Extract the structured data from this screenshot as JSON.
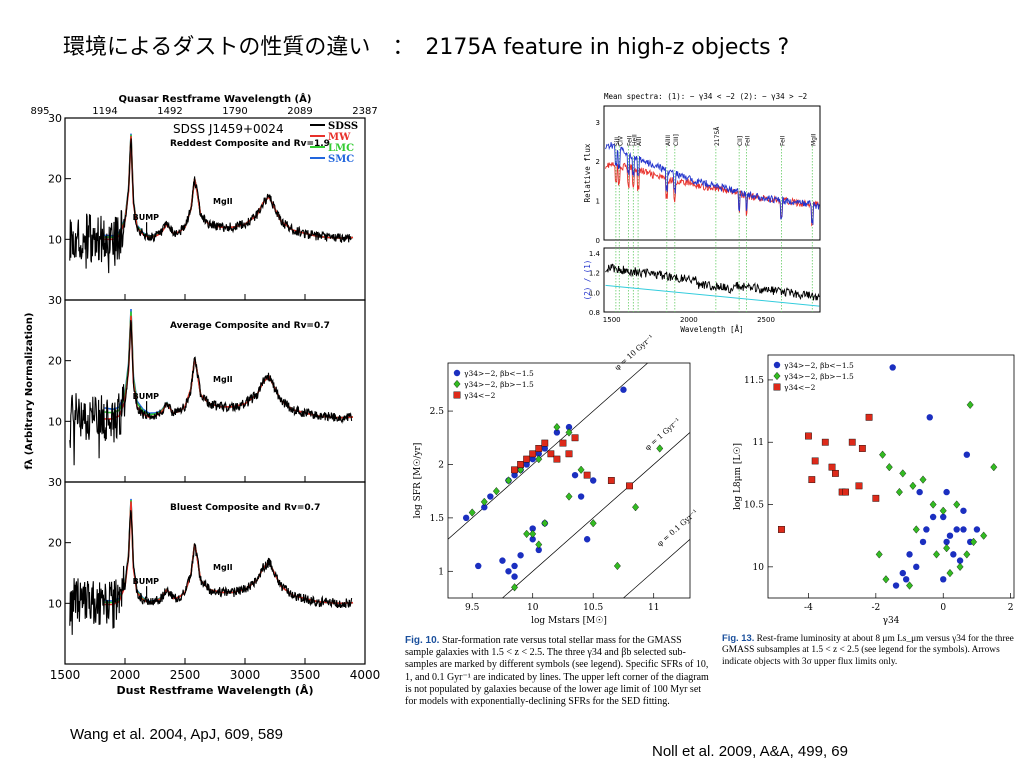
{
  "slide": {
    "title": "環境によるダストの性質の違い　：　2175A feature in high-z objects ?",
    "citation_left": "Wang et al. 2004, ApJ, 609, 589",
    "citation_right": "Noll et al. 2009, A&A, 499, 69"
  },
  "chart_data": [
    {
      "id": "wang-spectra",
      "type": "line",
      "title": "Quasar Restframe Wavelength (Å)",
      "xlabel": "Dust Restframe Wavelength (Å)",
      "ylabel": "fλ (Arbitrary Normalization)",
      "top_axis_ticks": [
        "895",
        "1194",
        "1492",
        "1790",
        "2089",
        "2387"
      ],
      "xlim": [
        1500,
        4000
      ],
      "x_ticks": [
        1500,
        2000,
        2500,
        3000,
        3500,
        4000
      ],
      "ylim": [
        0,
        30
      ],
      "y_ticks": [
        10,
        20,
        30
      ],
      "object_label": "SDSS J1459+0024",
      "legend": [
        "SDSS",
        "MW",
        "LMC",
        "SMC"
      ],
      "legend_colors": {
        "SDSS": "#000000",
        "MW": "#e8302a",
        "LMC": "#33cc33",
        "SMC": "#2266dd"
      },
      "panels": [
        {
          "label": "Reddest Composite and Rv=1.9",
          "bump_label": "BUMP",
          "line_label": "MgII",
          "bump_x": 2180,
          "bump_y": 12.5,
          "mg_x": 2800,
          "mg_y": 15.8
        },
        {
          "label": "Average Composite and Rv=0.7",
          "bump_label": "BUMP",
          "line_label": "MgII",
          "bump_x": 2180,
          "bump_y": 13,
          "mg_x": 2800,
          "mg_y": 16.5
        },
        {
          "label": "Bluest Composite and Rv=0.7",
          "bump_label": "BUMP",
          "line_label": "MgII",
          "bump_x": 2180,
          "bump_y": 12.5,
          "mg_x": 2800,
          "mg_y": 15.5
        }
      ],
      "series": [
        {
          "name": "MW",
          "x": [
            1600,
            1700,
            1800,
            1900,
            1950,
            2000,
            2030,
            2050,
            2070,
            2100,
            2150,
            2200,
            2250,
            2300,
            2350,
            2400,
            2450,
            2500,
            2550,
            2580,
            2600,
            2630,
            2700,
            2800,
            2900,
            3000,
            3100,
            3150,
            3200,
            3250,
            3300,
            3400,
            3500,
            3600,
            3700,
            3800,
            3900
          ],
          "y": [
            10.5,
            10.2,
            10,
            10,
            10.5,
            13,
            18,
            27,
            16,
            12,
            10.8,
            10.3,
            10.5,
            11,
            12.5,
            11,
            11.2,
            12,
            15,
            20,
            18,
            14,
            12.5,
            12,
            12,
            12.5,
            14,
            16,
            17,
            15,
            13,
            11.5,
            11,
            10.5,
            10.3,
            10.2,
            10.3
          ]
        }
      ]
    },
    {
      "id": "mean-spectra",
      "type": "line",
      "title": "Mean spectra: (1): − γ34 < −2   (2): − γ34 > −2",
      "xlabel": "Wavelength [Å]",
      "ylabel": "Relative flux",
      "ylabel_lower": "(2) / (1)",
      "xlim": [
        1450,
        2850
      ],
      "x_ticks": [
        1500,
        2000,
        2500
      ],
      "ylim": [
        0,
        3.4
      ],
      "y_ticks": [
        0,
        1,
        2,
        3
      ],
      "ylim_lower": [
        0.8,
        1.45
      ],
      "y_ticks_lower": [
        0.8,
        1.0,
        1.2,
        1.4
      ],
      "line_ids": [
        {
          "label": "SiII",
          "x": 1527
        },
        {
          "label": "CIV",
          "x": 1549
        },
        {
          "label": "FeII",
          "x": 1608
        },
        {
          "label": "HeII",
          "x": 1640
        },
        {
          "label": "AlII",
          "x": 1671
        },
        {
          "label": "AlIII",
          "x": 1857
        },
        {
          "label": "CIII]",
          "x": 1909
        },
        {
          "label": "2175Å",
          "x": 2175
        },
        {
          "label": "CII]",
          "x": 2326
        },
        {
          "label": "FeII",
          "x": 2374
        },
        {
          "label": "FeII",
          "x": 2600
        },
        {
          "label": "MgII",
          "x": 2800
        }
      ],
      "series": [
        {
          "name": "(1)",
          "color": "#e8302a",
          "x": [
            1500,
            1600,
            1700,
            1800,
            1900,
            2000,
            2100,
            2200,
            2300,
            2400,
            2500,
            2600,
            2700,
            2800,
            2850
          ],
          "y": [
            1.9,
            1.85,
            1.75,
            1.6,
            1.5,
            1.45,
            1.35,
            1.3,
            1.2,
            1.1,
            1.05,
            1.0,
            0.95,
            0.9,
            0.9
          ]
        },
        {
          "name": "(2)",
          "color": "#2233cc",
          "x": [
            1500,
            1600,
            1700,
            1800,
            1900,
            2000,
            2100,
            2200,
            2300,
            2400,
            2500,
            2600,
            2700,
            2800,
            2850
          ],
          "y": [
            2.4,
            2.2,
            2.0,
            1.85,
            1.7,
            1.55,
            1.45,
            1.35,
            1.25,
            1.15,
            1.05,
            1.0,
            0.95,
            0.9,
            0.85
          ]
        }
      ]
    },
    {
      "id": "sfr-mass",
      "type": "scatter",
      "xlabel": "log Mstars [M☉]",
      "ylabel": "log SFR [M☉/yr]",
      "xlim": [
        9.3,
        11.3
      ],
      "x_ticks": [
        9.5,
        10,
        10.5,
        11
      ],
      "ylim": [
        0.75,
        2.95
      ],
      "y_ticks": [
        1,
        1.5,
        2,
        2.5
      ],
      "legend": [
        "γ34>−2, βb<−1.5",
        "γ34>−2, βb>−1.5",
        "γ34<−2"
      ],
      "ssfr_lines": [
        {
          "label": "φ = 10 Gyr⁻¹",
          "log_ssfr": -8
        },
        {
          "label": "φ = 1 Gyr⁻¹",
          "log_ssfr": -9
        },
        {
          "label": "φ = 0.1 Gyr⁻¹",
          "log_ssfr": -10
        }
      ],
      "series": [
        {
          "name": "γ34>−2, βb<−1.5",
          "marker": "circle",
          "color": "#1b2fc0",
          "x": [
            9.45,
            9.6,
            9.65,
            9.8,
            9.85,
            9.9,
            9.95,
            10.0,
            10.05,
            10.1,
            10.1,
            10.2,
            10.3,
            10.35,
            10.4,
            10.5,
            9.55,
            9.75,
            9.8,
            9.85,
            9.9,
            10.0,
            10.05,
            10.1,
            10.45,
            10.75,
            9.85,
            10.0
          ],
          "y": [
            1.5,
            1.6,
            1.7,
            1.85,
            1.9,
            1.95,
            2.0,
            2.05,
            2.1,
            2.15,
            2.2,
            2.3,
            2.35,
            1.9,
            1.7,
            1.85,
            1.05,
            1.1,
            1.0,
            1.05,
            1.15,
            1.3,
            1.2,
            1.45,
            1.3,
            2.7,
            0.95,
            1.4
          ]
        },
        {
          "name": "γ34>−2, βb>−1.5",
          "marker": "diamond",
          "color": "#33bb22",
          "x": [
            9.5,
            9.6,
            9.7,
            9.8,
            9.9,
            10.0,
            10.05,
            10.1,
            10.2,
            10.3,
            10.4,
            9.95,
            10.05,
            10.5,
            10.85,
            11.05,
            10.7,
            10.3,
            9.85
          ],
          "y": [
            1.55,
            1.65,
            1.75,
            1.85,
            1.95,
            1.35,
            2.05,
            1.45,
            2.35,
            2.3,
            1.95,
            1.35,
            1.25,
            1.45,
            1.6,
            2.15,
            1.05,
            1.7,
            0.85
          ]
        },
        {
          "name": "γ34<−2",
          "marker": "square",
          "color": "#dd2a1a",
          "x": [
            9.85,
            9.9,
            9.95,
            10.0,
            10.05,
            10.1,
            10.15,
            10.2,
            10.25,
            10.3,
            10.35,
            10.45,
            10.65,
            10.8
          ],
          "y": [
            1.95,
            2.0,
            2.05,
            2.1,
            2.15,
            2.2,
            2.1,
            2.05,
            2.2,
            2.1,
            2.25,
            1.9,
            1.85,
            1.8
          ]
        }
      ]
    },
    {
      "id": "lum-gamma",
      "type": "scatter",
      "xlabel": "γ34",
      "ylabel": "log L8μm [L☉]",
      "xlim": [
        -5.2,
        2.1
      ],
      "x_ticks": [
        -4,
        -2,
        0,
        2
      ],
      "ylim": [
        9.75,
        11.7
      ],
      "y_ticks": [
        10,
        10.5,
        11,
        11.5
      ],
      "legend": [
        "γ34>−2, βb<−1.5",
        "γ34>−2, βb>−1.5",
        "γ34<−2"
      ],
      "series": [
        {
          "name": "γ34>−2, βb<−1.5",
          "marker": "circle",
          "color": "#1b2fc0",
          "x": [
            -1.5,
            -0.4,
            0.7,
            0.1,
            -0.7,
            0.0,
            0.4,
            0.8,
            1.0,
            -1.0,
            -1.2,
            -0.8,
            -0.5,
            0.1,
            0.2,
            0.5,
            0.6,
            -0.3,
            0.0,
            0.3,
            -1.4,
            -1.1,
            0.6,
            -0.6
          ],
          "y": [
            11.6,
            11.2,
            10.9,
            10.6,
            10.6,
            10.4,
            10.3,
            10.2,
            10.3,
            10.1,
            9.95,
            10.0,
            10.3,
            10.2,
            10.25,
            10.05,
            10.3,
            10.4,
            9.9,
            10.1,
            9.85,
            9.9,
            10.45,
            10.2
          ]
        },
        {
          "name": "γ34>−2, βb>−1.5",
          "marker": "diamond",
          "color": "#33bb22",
          "x": [
            -1.8,
            -1.6,
            -1.2,
            -0.9,
            -0.6,
            -0.3,
            0.0,
            0.4,
            0.7,
            1.2,
            1.5,
            -1.7,
            -1.9,
            -1.0,
            -0.2,
            0.2,
            0.5,
            0.9,
            -0.8,
            -1.3,
            0.1,
            0.8
          ],
          "y": [
            10.9,
            10.8,
            10.75,
            10.65,
            10.7,
            10.5,
            10.45,
            10.5,
            10.1,
            10.25,
            10.8,
            9.9,
            10.1,
            9.85,
            10.1,
            9.95,
            10.0,
            10.2,
            10.3,
            10.6,
            10.15,
            11.3
          ]
        },
        {
          "name": "γ34<−2",
          "marker": "square",
          "color": "#dd2a1a",
          "x": [
            -4.8,
            -4.0,
            -3.8,
            -3.5,
            -3.2,
            -3.0,
            -2.7,
            -2.5,
            -2.2,
            -2.0,
            -3.9,
            -3.3,
            -2.4,
            -2.9
          ],
          "y": [
            10.3,
            11.05,
            10.85,
            11.0,
            10.75,
            10.6,
            11.0,
            10.65,
            11.2,
            10.55,
            10.7,
            10.8,
            10.95,
            10.6
          ]
        }
      ]
    }
  ],
  "captions": {
    "sfr_label": "Fig. 10.",
    "sfr_text": "Star-formation rate versus total stellar mass for the GMASS sample galaxies with 1.5 < z < 2.5. The three γ34 and βb selected sub-samples are marked by different symbols (see legend). Specific SFRs of 10, 1, and 0.1 Gyr⁻¹ are indicated by lines. The upper left corner of the diagram is not populated by galaxies because of the lower age limit of 100 Myr set for models with exponentially-declining SFRs for the SED fitting.",
    "lum_label": "Fig. 13.",
    "lum_text": "Rest-frame luminosity at about 8 μm Ls_μm versus γ34 for the three GMASS subsamples at 1.5 < z < 2.5 (see legend for the symbols). Arrows indicate objects with 3σ upper flux limits only."
  }
}
